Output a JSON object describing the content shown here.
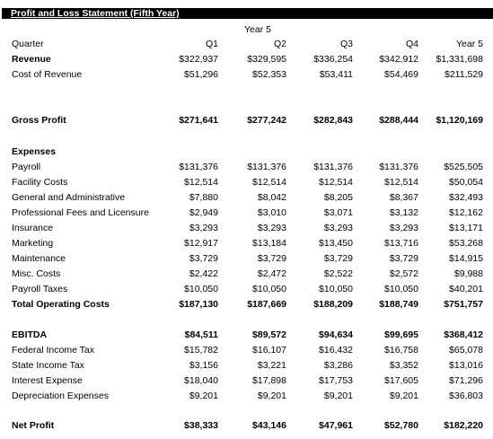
{
  "title": "Profit and Loss Statement (Fifth Year)",
  "year_header": "Year 5",
  "columns": {
    "quarter_label": "Quarter",
    "headers": [
      "Q1",
      "Q2",
      "Q3",
      "Q4",
      "Year 5"
    ]
  },
  "rows": {
    "revenue": {
      "label": "Revenue",
      "values": [
        "$322,937",
        "$329,595",
        "$336,254",
        "$342,912",
        "$1,331,698"
      ]
    },
    "cost_of_revenue": {
      "label": "Cost of Revenue",
      "values": [
        "$51,296",
        "$52,353",
        "$53,411",
        "$54,469",
        "$211,529"
      ]
    },
    "gross_profit": {
      "label": "Gross Profit",
      "values": [
        "$271,641",
        "$277,242",
        "$282,843",
        "$288,444",
        "$1,120,169"
      ]
    },
    "expenses_heading": {
      "label": "Expenses"
    },
    "payroll": {
      "label": "Payroll",
      "values": [
        "$131,376",
        "$131,376",
        "$131,376",
        "$131,376",
        "$525,505"
      ]
    },
    "facility_costs": {
      "label": "Facility Costs",
      "values": [
        "$12,514",
        "$12,514",
        "$12,514",
        "$12,514",
        "$50,054"
      ]
    },
    "general_admin": {
      "label": "General and Administrative",
      "values": [
        "$7,880",
        "$8,042",
        "$8,205",
        "$8,367",
        "$32,493"
      ]
    },
    "professional_fees": {
      "label": "Professional Fees and Licensure",
      "values": [
        "$2,949",
        "$3,010",
        "$3,071",
        "$3,132",
        "$12,162"
      ]
    },
    "insurance": {
      "label": "Insurance",
      "values": [
        "$3,293",
        "$3,293",
        "$3,293",
        "$3,293",
        "$13,171"
      ]
    },
    "marketing": {
      "label": "Marketing",
      "values": [
        "$12,917",
        "$13,184",
        "$13,450",
        "$13,716",
        "$53,268"
      ]
    },
    "maintenance": {
      "label": "Maintenance",
      "values": [
        "$3,729",
        "$3,729",
        "$3,729",
        "$3,729",
        "$14,915"
      ]
    },
    "misc_costs": {
      "label": "Misc. Costs",
      "values": [
        "$2,422",
        "$2,472",
        "$2,522",
        "$2,572",
        "$9,988"
      ]
    },
    "payroll_taxes": {
      "label": "Payroll Taxes",
      "values": [
        "$10,050",
        "$10,050",
        "$10,050",
        "$10,050",
        "$40,201"
      ]
    },
    "total_operating_costs": {
      "label": "Total Operating Costs",
      "values": [
        "$187,130",
        "$187,669",
        "$188,209",
        "$188,749",
        "$751,757"
      ]
    },
    "ebitda": {
      "label": "EBITDA",
      "values": [
        "$84,511",
        "$89,572",
        "$94,634",
        "$99,695",
        "$368,412"
      ]
    },
    "federal_income_tax": {
      "label": "Federal Income Tax",
      "values": [
        "$15,782",
        "$16,107",
        "$16,432",
        "$16,758",
        "$65,078"
      ]
    },
    "state_income_tax": {
      "label": "State Income Tax",
      "values": [
        "$3,156",
        "$3,221",
        "$3,286",
        "$3,352",
        "$13,016"
      ]
    },
    "interest_expense": {
      "label": "Interest Expense",
      "values": [
        "$18,040",
        "$17,898",
        "$17,753",
        "$17,605",
        "$71,296"
      ]
    },
    "depreciation_expenses": {
      "label": "Depreciation Expenses",
      "values": [
        "$9,201",
        "$9,201",
        "$9,201",
        "$9,201",
        "$36,803"
      ]
    },
    "net_profit": {
      "label": "Net Profit",
      "values": [
        "$38,333",
        "$43,146",
        "$47,961",
        "$52,780",
        "$182,220"
      ]
    }
  }
}
